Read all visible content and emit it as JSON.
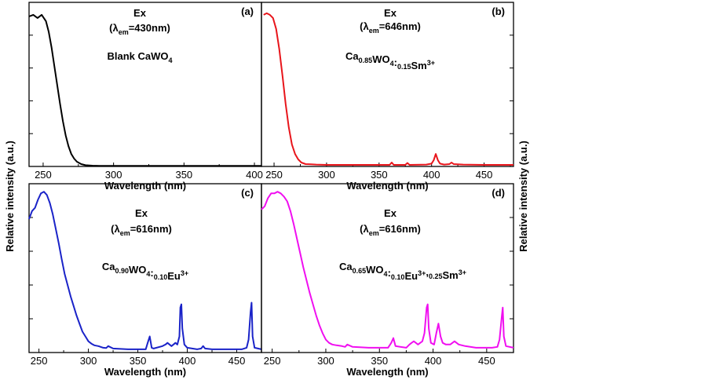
{
  "figure": {
    "ylabel": "Relative intensity (a.u.)",
    "ylabel_right": "Relative intensity (a.u.)"
  },
  "chart_data": [
    {
      "type": "line",
      "panel": "(a)",
      "title": "Ex",
      "subtitle": "(λem=430nm)",
      "sample": "Blank CaWO4",
      "xlabel": "Wavelength (nm)",
      "ylabel": "Relative intensity (a.u.)",
      "xlim": [
        240,
        405
      ],
      "ylim": [
        0,
        1.05
      ],
      "xticks": [
        250,
        300,
        350,
        400
      ],
      "color": "#000000",
      "series": [
        {
          "x": [
            240,
            243,
            246,
            249,
            252,
            254,
            256,
            258,
            260,
            262,
            264,
            266,
            268,
            270,
            272,
            274,
            277,
            280,
            285,
            290,
            300,
            320,
            350,
            380,
            405
          ],
          "values": [
            0.96,
            0.97,
            0.95,
            0.97,
            0.93,
            0.86,
            0.76,
            0.64,
            0.52,
            0.4,
            0.29,
            0.2,
            0.13,
            0.08,
            0.05,
            0.03,
            0.015,
            0.008,
            0.005,
            0.004,
            0.004,
            0.004,
            0.004,
            0.004,
            0.004
          ]
        }
      ]
    },
    {
      "type": "line",
      "panel": "(b)",
      "title": "Ex",
      "subtitle": "(λem=646nm)",
      "sample": "Ca0.85WO4:0.15Sm3+",
      "xlabel": "Wavelength (nm)",
      "ylabel": "Relative intensity (a.u.)",
      "xlim": [
        238,
        478
      ],
      "ylim": [
        0,
        1.05
      ],
      "xticks": [
        250,
        300,
        350,
        400,
        450
      ],
      "color": "#e8151b",
      "series": [
        {
          "x": [
            240,
            243,
            246,
            249,
            252,
            255,
            258,
            261,
            264,
            267,
            270,
            273,
            276,
            280,
            285,
            290,
            300,
            320,
            345,
            360,
            362,
            364,
            375,
            377,
            379,
            395,
            400,
            402,
            404,
            406,
            408,
            412,
            417,
            419,
            421,
            430,
            450,
            478
          ],
          "values": [
            0.97,
            0.98,
            0.97,
            0.95,
            0.88,
            0.75,
            0.58,
            0.4,
            0.25,
            0.14,
            0.08,
            0.045,
            0.025,
            0.015,
            0.014,
            0.012,
            0.01,
            0.01,
            0.01,
            0.01,
            0.025,
            0.01,
            0.01,
            0.022,
            0.01,
            0.012,
            0.018,
            0.04,
            0.08,
            0.04,
            0.018,
            0.012,
            0.015,
            0.025,
            0.015,
            0.012,
            0.01,
            0.01
          ]
        }
      ]
    },
    {
      "type": "line",
      "panel": "(c)",
      "title": "Ex",
      "subtitle": "(λem=616nm)",
      "sample": "Ca0.90WO4:0.10Eu3+",
      "xlabel": "Wavelength (nm)",
      "ylabel": "Relative intensity (a.u.)",
      "xlim": [
        240,
        475
      ],
      "ylim": [
        0,
        1.05
      ],
      "xticks": [
        250,
        300,
        350,
        400,
        450
      ],
      "color": "#1a23c8",
      "series": [
        {
          "x": [
            240,
            243,
            246,
            249,
            252,
            255,
            258,
            261,
            264,
            267,
            270,
            273,
            276,
            279,
            282,
            285,
            288,
            291,
            294,
            297,
            300,
            303,
            306,
            310,
            315,
            318,
            320,
            325,
            340,
            358,
            360,
            362,
            364,
            366,
            375,
            378,
            380,
            382,
            384,
            386,
            388,
            390,
            392,
            393,
            394,
            395,
            397,
            400,
            410,
            414,
            416,
            418,
            425,
            440,
            455,
            460,
            462,
            464,
            465,
            466,
            468,
            475
          ],
          "values": [
            0.83,
            0.88,
            0.9,
            0.95,
            0.99,
            1.0,
            0.98,
            0.93,
            0.86,
            0.77,
            0.68,
            0.58,
            0.49,
            0.42,
            0.35,
            0.29,
            0.23,
            0.18,
            0.13,
            0.1,
            0.07,
            0.055,
            0.045,
            0.04,
            0.03,
            0.028,
            0.04,
            0.025,
            0.02,
            0.02,
            0.06,
            0.1,
            0.03,
            0.025,
            0.04,
            0.05,
            0.06,
            0.05,
            0.04,
            0.05,
            0.06,
            0.05,
            0.1,
            0.28,
            0.3,
            0.15,
            0.05,
            0.03,
            0.02,
            0.025,
            0.04,
            0.025,
            0.02,
            0.02,
            0.02,
            0.03,
            0.08,
            0.25,
            0.31,
            0.1,
            0.03,
            0.02
          ]
        }
      ]
    },
    {
      "type": "line",
      "panel": "(d)",
      "title": "Ex",
      "subtitle": "(λem=616nm)",
      "sample": "Ca0.65WO4:0.10Eu3+,0.25Sm3+",
      "xlabel": "Wavelength (nm)",
      "ylabel": "Relative intensity (a.u.)",
      "xlim": [
        240,
        475
      ],
      "ylim": [
        0,
        1.05
      ],
      "xticks": [
        250,
        300,
        350,
        400,
        450
      ],
      "color": "#f00ff0",
      "series": [
        {
          "x": [
            240,
            243,
            246,
            249,
            252,
            255,
            258,
            261,
            264,
            267,
            270,
            273,
            276,
            279,
            282,
            285,
            288,
            291,
            294,
            297,
            300,
            303,
            306,
            310,
            315,
            318,
            320,
            325,
            340,
            358,
            361,
            363,
            365,
            375,
            378,
            380,
            382,
            384,
            386,
            388,
            390,
            392,
            394,
            395,
            396,
            398,
            401,
            403,
            405,
            407,
            409,
            412,
            416,
            420,
            424,
            430,
            440,
            455,
            460,
            462,
            464,
            465,
            466,
            468,
            475
          ],
          "values": [
            0.89,
            0.91,
            0.96,
            0.99,
            0.99,
            1.0,
            0.99,
            0.97,
            0.94,
            0.88,
            0.8,
            0.71,
            0.62,
            0.53,
            0.45,
            0.37,
            0.3,
            0.23,
            0.17,
            0.12,
            0.08,
            0.06,
            0.05,
            0.045,
            0.04,
            0.035,
            0.05,
            0.035,
            0.03,
            0.03,
            0.06,
            0.09,
            0.04,
            0.03,
            0.05,
            0.06,
            0.07,
            0.06,
            0.05,
            0.06,
            0.07,
            0.12,
            0.28,
            0.3,
            0.15,
            0.06,
            0.05,
            0.12,
            0.18,
            0.1,
            0.06,
            0.05,
            0.05,
            0.07,
            0.05,
            0.04,
            0.03,
            0.03,
            0.035,
            0.08,
            0.22,
            0.28,
            0.1,
            0.04,
            0.03
          ]
        }
      ]
    }
  ]
}
